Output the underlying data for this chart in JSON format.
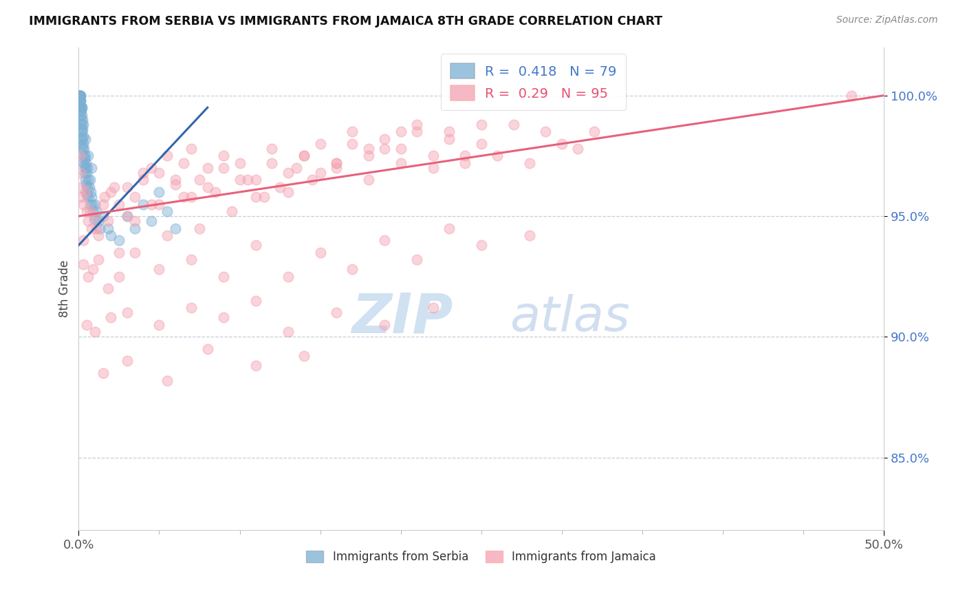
{
  "title": "IMMIGRANTS FROM SERBIA VS IMMIGRANTS FROM JAMAICA 8TH GRADE CORRELATION CHART",
  "source": "Source: ZipAtlas.com",
  "ylabel": "8th Grade",
  "xlim": [
    0.0,
    50.0
  ],
  "ylim": [
    82.0,
    102.0
  ],
  "yticks": [
    85.0,
    90.0,
    95.0,
    100.0
  ],
  "ytick_labels": [
    "85.0%",
    "90.0%",
    "95.0%",
    "100.0%"
  ],
  "xticks": [
    0.0,
    50.0
  ],
  "xtick_labels": [
    "0.0%",
    "50.0%"
  ],
  "R_serbia": 0.418,
  "N_serbia": 79,
  "R_jamaica": 0.29,
  "N_jamaica": 95,
  "serbia_color": "#7BAFD4",
  "jamaica_color": "#F4A0B0",
  "serbia_trend_color": "#3366AA",
  "jamaica_trend_color": "#E8607A",
  "watermark_zip": "ZIP",
  "watermark_atlas": "atlas",
  "serbia_scatter_x": [
    0.05,
    0.05,
    0.05,
    0.08,
    0.08,
    0.08,
    0.1,
    0.1,
    0.1,
    0.12,
    0.12,
    0.15,
    0.15,
    0.15,
    0.18,
    0.18,
    0.2,
    0.2,
    0.2,
    0.22,
    0.22,
    0.25,
    0.25,
    0.28,
    0.28,
    0.3,
    0.3,
    0.33,
    0.35,
    0.35,
    0.38,
    0.4,
    0.4,
    0.42,
    0.45,
    0.45,
    0.5,
    0.5,
    0.55,
    0.55,
    0.6,
    0.6,
    0.65,
    0.7,
    0.7,
    0.75,
    0.8,
    0.85,
    0.9,
    0.95,
    1.0,
    1.1,
    1.2,
    1.3,
    1.5,
    1.8,
    2.0,
    2.5,
    3.0,
    3.5,
    4.0,
    4.5,
    5.0,
    5.5,
    6.0,
    0.0,
    0.03,
    0.03,
    0.06,
    0.06,
    0.09,
    0.09,
    0.12,
    0.16,
    0.2,
    0.3,
    0.4,
    0.6,
    0.8
  ],
  "serbia_scatter_y": [
    100.0,
    100.0,
    100.0,
    100.0,
    100.0,
    99.8,
    100.0,
    99.5,
    99.2,
    99.8,
    99.4,
    99.0,
    98.6,
    98.2,
    99.5,
    98.8,
    99.2,
    98.5,
    97.9,
    99.0,
    98.2,
    98.6,
    97.8,
    98.3,
    97.5,
    98.0,
    97.2,
    97.8,
    97.4,
    96.8,
    97.1,
    97.5,
    96.5,
    97.0,
    97.2,
    96.3,
    96.8,
    95.9,
    97.0,
    96.2,
    96.5,
    95.8,
    96.2,
    96.5,
    95.5,
    96.0,
    95.8,
    95.5,
    95.2,
    94.9,
    95.5,
    95.2,
    94.8,
    94.5,
    95.0,
    94.5,
    94.2,
    94.0,
    95.0,
    94.5,
    95.5,
    94.8,
    96.0,
    95.2,
    94.5,
    100.0,
    100.0,
    100.0,
    100.0,
    99.8,
    100.0,
    99.6,
    99.8,
    99.4,
    99.5,
    98.8,
    98.2,
    97.5,
    97.0
  ],
  "jamaica_scatter_x": [
    0.05,
    0.1,
    0.15,
    0.2,
    0.3,
    0.4,
    0.5,
    0.6,
    0.8,
    1.0,
    1.2,
    1.5,
    1.8,
    2.0,
    2.5,
    3.0,
    3.5,
    4.0,
    4.5,
    5.0,
    5.5,
    6.0,
    6.5,
    7.0,
    7.5,
    8.0,
    9.0,
    10.0,
    11.0,
    12.0,
    13.0,
    14.0,
    15.0,
    16.0,
    17.0,
    18.0,
    19.0,
    20.0,
    21.0,
    22.0,
    23.0,
    24.0,
    25.0,
    26.0,
    27.0,
    28.0,
    29.0,
    30.0,
    31.0,
    32.0,
    0.3,
    0.7,
    1.1,
    1.6,
    2.2,
    3.0,
    4.0,
    5.0,
    6.0,
    7.0,
    8.0,
    9.0,
    10.0,
    11.0,
    12.0,
    13.0,
    14.0,
    15.0,
    16.0,
    17.0,
    18.0,
    19.0,
    20.0,
    21.0,
    22.0,
    23.0,
    24.0,
    25.0,
    2.5,
    3.5,
    4.5,
    5.5,
    6.5,
    7.5,
    8.5,
    9.5,
    10.5,
    11.5,
    12.5,
    13.5,
    14.5,
    16.0,
    18.0,
    20.0,
    48.0
  ],
  "jamaica_scatter_y": [
    97.5,
    96.8,
    96.2,
    95.8,
    95.5,
    96.0,
    95.2,
    94.8,
    94.5,
    95.0,
    94.2,
    95.5,
    94.8,
    96.0,
    95.5,
    96.2,
    95.8,
    96.5,
    97.0,
    96.8,
    97.5,
    96.3,
    97.2,
    97.8,
    96.5,
    97.0,
    97.5,
    97.2,
    96.5,
    97.8,
    96.8,
    97.5,
    98.0,
    97.2,
    98.5,
    97.5,
    98.2,
    97.8,
    98.8,
    97.5,
    98.5,
    97.2,
    98.0,
    97.5,
    98.8,
    97.2,
    98.5,
    98.0,
    97.8,
    98.5,
    94.0,
    95.2,
    94.5,
    95.8,
    96.2,
    95.0,
    96.8,
    95.5,
    96.5,
    95.8,
    96.2,
    97.0,
    96.5,
    95.8,
    97.2,
    96.0,
    97.5,
    96.8,
    97.0,
    98.0,
    96.5,
    97.8,
    97.2,
    98.5,
    97.0,
    98.2,
    97.5,
    98.8,
    93.5,
    94.8,
    95.5,
    94.2,
    95.8,
    94.5,
    96.0,
    95.2,
    96.5,
    95.8,
    96.2,
    97.0,
    96.5,
    97.2,
    97.8,
    98.5,
    100.0
  ],
  "jamaica_low_x": [
    0.3,
    0.6,
    0.9,
    1.2,
    1.8,
    2.5,
    3.5,
    5.0,
    7.0,
    9.0,
    11.0,
    13.0,
    15.0,
    17.0,
    19.0,
    21.0,
    23.0,
    25.0,
    28.0
  ],
  "jamaica_low_y": [
    93.0,
    92.5,
    92.8,
    93.2,
    92.0,
    92.5,
    93.5,
    92.8,
    93.2,
    92.5,
    93.8,
    92.5,
    93.5,
    92.8,
    94.0,
    93.2,
    94.5,
    93.8,
    94.2
  ],
  "jamaica_vlow_x": [
    0.5,
    1.0,
    2.0,
    3.0,
    5.0,
    7.0,
    9.0,
    11.0,
    13.0,
    16.0,
    19.0,
    22.0
  ],
  "jamaica_vlow_y": [
    90.5,
    90.2,
    90.8,
    91.0,
    90.5,
    91.2,
    90.8,
    91.5,
    90.2,
    91.0,
    90.5,
    91.2
  ],
  "jamaica_xlow_x": [
    1.5,
    3.0,
    5.5,
    8.0,
    11.0,
    14.0
  ],
  "jamaica_xlow_y": [
    88.5,
    89.0,
    88.2,
    89.5,
    88.8,
    89.2
  ]
}
